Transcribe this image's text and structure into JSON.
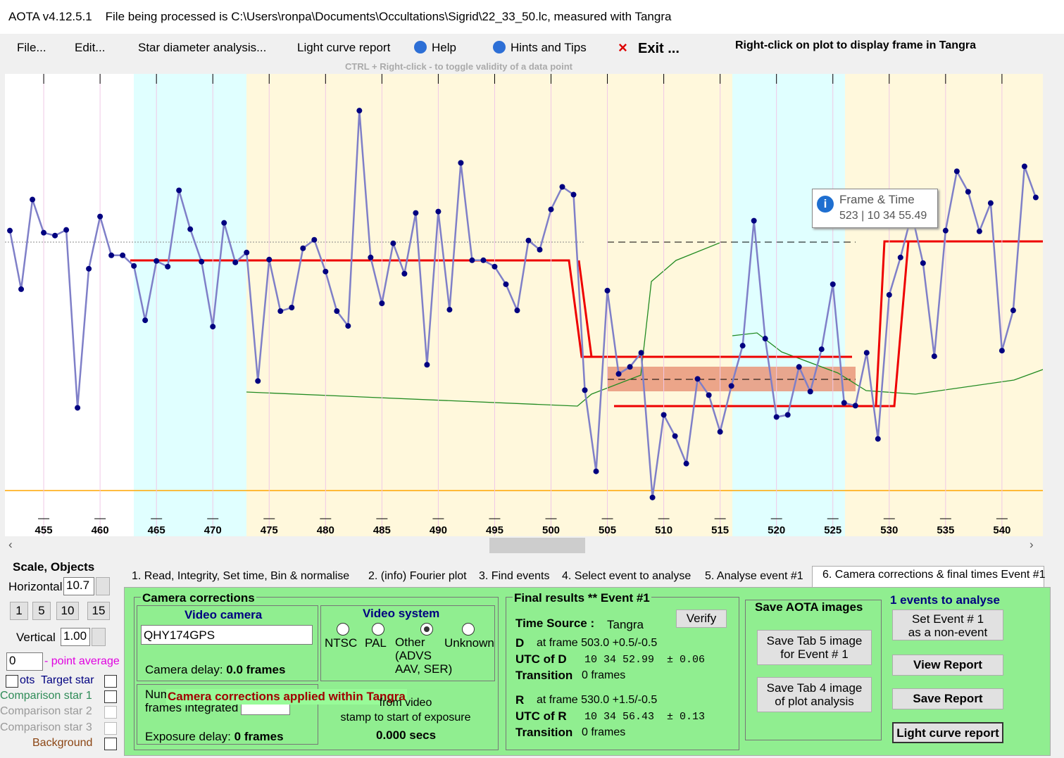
{
  "window": {
    "title": "AOTA v4.12.5.1    File being processed is C:\\Users\\ronpa\\Documents\\Occultations\\Sigrid\\22_33_50.lc, measured with Tangra"
  },
  "menu": {
    "items": [
      "File...",
      "Edit...",
      "Star diameter analysis...",
      "Light curve report",
      "Help",
      "Hints and Tips",
      "Exit ..."
    ],
    "hint": "Right-click on plot to display frame in Tangra",
    "subhint": "CTRL + Right-click  -  to toggle validity of a data point"
  },
  "tooltip": {
    "title": "Frame & Time",
    "text": "523 | 10 34 55.49"
  },
  "chart_data": {
    "type": "line",
    "color": "#7f7fc8",
    "marker_color": "#000080",
    "x": [
      452,
      453,
      454,
      455,
      456,
      457,
      458,
      459,
      460,
      461,
      462,
      463,
      464,
      465,
      466,
      467,
      468,
      469,
      470,
      471,
      472,
      473,
      474,
      475,
      476,
      477,
      478,
      479,
      480,
      481,
      482,
      483,
      484,
      485,
      486,
      487,
      488,
      489,
      490,
      491,
      492,
      493,
      494,
      495,
      496,
      497,
      498,
      499,
      500,
      501,
      502,
      503,
      504,
      505,
      506,
      507,
      508,
      509,
      510,
      511,
      512,
      513,
      514,
      515,
      516,
      517,
      518,
      519,
      520,
      521,
      522,
      523,
      524,
      525,
      526,
      527,
      528,
      529,
      530,
      531,
      532,
      533,
      534,
      535,
      536,
      537,
      538,
      539,
      540,
      541,
      542,
      543
    ],
    "values": [
      373,
      290,
      417,
      370,
      366,
      374,
      122,
      319,
      393,
      338,
      338,
      323,
      246,
      330,
      322,
      430,
      375,
      329,
      237,
      384,
      328,
      342,
      160,
      332,
      259,
      264,
      348,
      360,
      315,
      259,
      238,
      543,
      335,
      270,
      355,
      312,
      398,
      183,
      400,
      261,
      469,
      331,
      331,
      322,
      297,
      260,
      359,
      346,
      403,
      435,
      424,
      147,
      32,
      288,
      170,
      180,
      200,
      -5,
      112,
      82,
      43,
      163,
      140,
      88,
      153,
      210,
      387,
      220,
      109,
      112,
      180,
      145,
      205,
      297,
      129,
      125,
      200,
      78,
      282,
      335,
      397,
      327,
      195,
      373,
      457,
      428,
      372,
      412,
      203,
      260,
      464,
      420
    ],
    "xlim": [
      451.56,
      543.63
    ],
    "ylim": [
      -60,
      595
    ],
    "xticks": [
      455,
      460,
      465,
      470,
      475,
      480,
      485,
      490,
      495,
      500,
      505,
      510,
      515,
      520,
      525,
      530,
      535,
      540
    ]
  },
  "left": {
    "scale_title": "Scale,  Objects",
    "horizontal": "Horizontal",
    "hval": "10.7",
    "buttons": [
      "1",
      "5",
      "10",
      "15"
    ],
    "vertical": "Vertical",
    "vval": "1.00",
    "avg": "0",
    "avg_label": "- point average",
    "objects": [
      "ots  Target star",
      "Comparison star 1",
      "Comparison star 2",
      "Comparison star 3",
      "Background"
    ]
  },
  "tabs": [
    "1.  Read, Integrity, Set time, Bin & normalise",
    "2. (info)  Fourier plot",
    "3. Find events",
    "4. Select event to analyse",
    "5. Analyse event #1",
    "6. Camera corrections & final times Event #1"
  ],
  "camera": {
    "title": "Camera corrections",
    "video_camera": "Video camera",
    "camera": "QHY174GPS",
    "camera_delay": "Camera delay: ",
    "camera_delay_v": "0.0 frames",
    "video_system": "Video system",
    "systems": [
      "NTSC",
      "PAL",
      "Other\n(ADVS\nAAV, SER)",
      "Unknown"
    ],
    "num": "Num\nframes integrated",
    "overlay": "Camera corrections applied within Tangra",
    "from": "from video\nstamp to start of exposure",
    "secs": "0.000 secs",
    "exposure": "Exposure delay: ",
    "exposure_v": "0 frames"
  },
  "results": {
    "title": "Final results  **  Event #1",
    "verify": "Verify",
    "time_source": "Time Source :",
    "source": "Tangra",
    "d": [
      "D",
      "at frame 503.0  +0.5/-0.5",
      "UTC of D",
      "10 34 52.99  ± 0.06",
      "Transition",
      "0 frames"
    ],
    "r": [
      "R",
      "at frame 530.0  +1.5/-0.5",
      "UTC of R",
      "10 34 56.43  ± 0.13",
      "Transition",
      "0 frames"
    ]
  },
  "save": {
    "title": "Save AOTA images",
    "tab5": "Save Tab 5 image\nfor Event # 1",
    "tab4": "Save Tab 4 image\nof plot analysis"
  },
  "events": {
    "title": "1  events to analyse",
    "set": "Set Event # 1\nas a non-event",
    "view": "View Report",
    "save": "Save Report",
    "lc": "Light curve report"
  }
}
